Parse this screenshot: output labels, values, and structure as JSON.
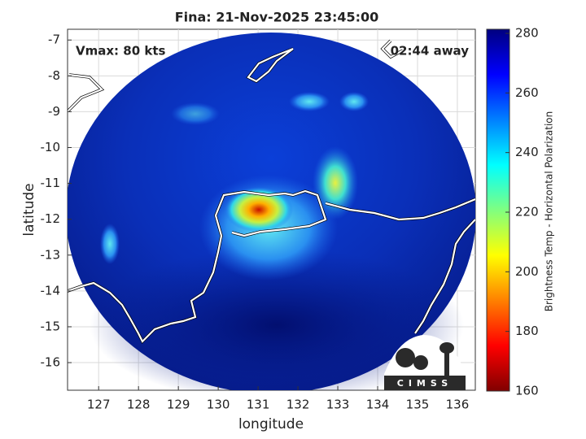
{
  "chart_data": {
    "type": "image",
    "title": "Fina: 21-Nov-2025 23:45:00",
    "annotations": {
      "left": "Vmax: 80 kts",
      "right": "02:44 away"
    },
    "xlabel": "longitude",
    "ylabel": "latitude",
    "xlim": [
      126.22,
      136.45
    ],
    "xticks": [
      127,
      128,
      129,
      130,
      131,
      132,
      133,
      134,
      135,
      136
    ],
    "ylim": [
      -16.77,
      -6.7
    ],
    "yticks": [
      -7,
      -8,
      -9,
      -10,
      -11,
      -12,
      -13,
      -14,
      -15,
      -16
    ],
    "grid": true,
    "colorbar": {
      "label": "Brightness Temp - Horizontal Polarization",
      "lim": [
        160,
        280
      ],
      "ticks": [
        160,
        180,
        200,
        220,
        240,
        260,
        280
      ],
      "colormap": "jet"
    },
    "logo": "CIMSS"
  }
}
